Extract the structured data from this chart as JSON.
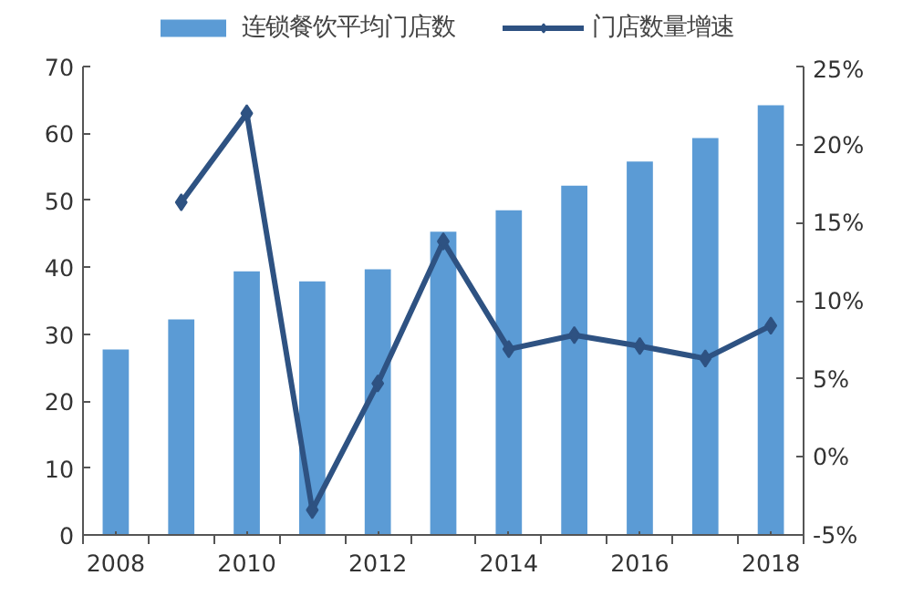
{
  "chart_data": {
    "type": "bar",
    "categories": [
      "2008",
      null,
      "2010",
      null,
      "2012",
      null,
      "2014",
      null,
      "2016",
      null,
      "2018"
    ],
    "series": [
      {
        "name": "连锁餐饮平均门店数",
        "color": "#5b9bd5",
        "values": [
          27.7,
          32.2,
          39.4,
          37.9,
          39.7,
          45.3,
          48.5,
          52.2,
          55.8,
          59.3,
          64.2
        ]
      },
      {
        "name": "门店数量增速",
        "type": "line",
        "axis": "y2",
        "color": "#2e5282",
        "marker": "diamond",
        "values": [
          null,
          16.3,
          22.0,
          -3.4,
          4.7,
          13.8,
          6.9,
          7.8,
          7.1,
          6.3,
          8.4
        ]
      }
    ],
    "ylim": [
      0,
      70
    ],
    "yticks": [
      0,
      10,
      20,
      30,
      40,
      50,
      60,
      70
    ],
    "y2lim": [
      -5,
      25
    ],
    "y2ticks": [
      {
        "value": -5,
        "label": "-5%"
      },
      {
        "value": 0,
        "label": "0%"
      },
      {
        "value": 5,
        "label": "5%"
      },
      {
        "value": 10,
        "label": "10%"
      },
      {
        "value": 15,
        "label": "15%"
      },
      {
        "value": 20,
        "label": "20%"
      },
      {
        "value": 25,
        "label": "25%"
      }
    ],
    "grid": false,
    "legend": "top"
  }
}
